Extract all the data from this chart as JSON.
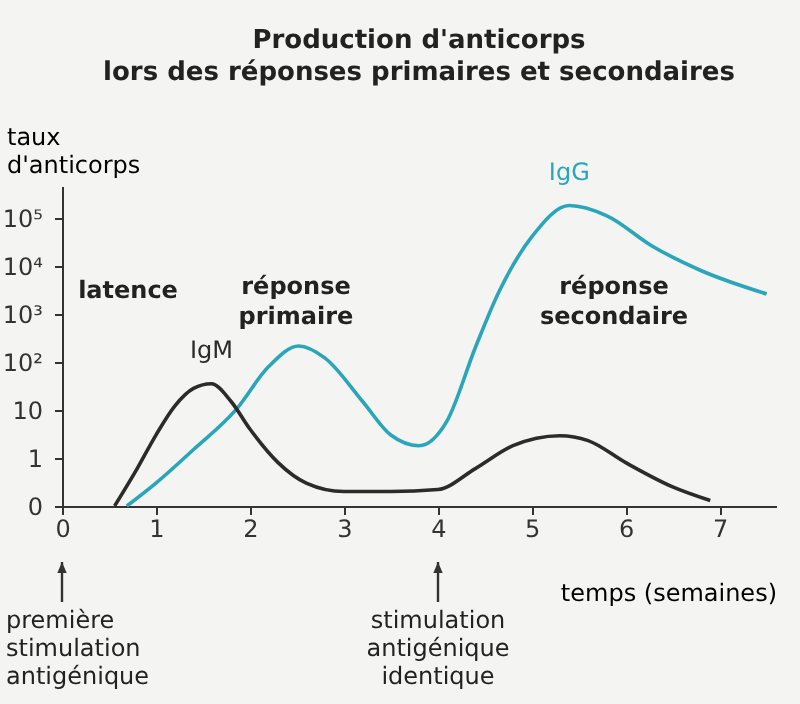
{
  "chart_data": {
    "type": "line",
    "title": "Production d'anticorps\nlors des réponses primaires et secondaires",
    "xlabel": "temps (semaines)",
    "ylabel": "taux\nd'anticorps",
    "log": "y",
    "xlim": [
      0,
      7.6
    ],
    "xticks": [
      0,
      1,
      2,
      3,
      4,
      5,
      6,
      7
    ],
    "ylim": [
      0.1,
      460000
    ],
    "yticks": [
      {
        "value": 0.1,
        "label": "0"
      },
      1,
      10,
      {
        "value": 100,
        "label": "10²"
      },
      {
        "value": 1000,
        "label": "10³"
      },
      {
        "value": 10000,
        "label": "10⁴"
      },
      {
        "value": 100000,
        "label": "10⁵"
      }
    ],
    "grid": false,
    "legend": false,
    "marker": "none",
    "line_style": "solid",
    "series": [
      {
        "name": "IgG",
        "color": "#2aa5b9",
        "x": [
          0.69,
          1.0,
          1.4,
          1.85,
          2.2,
          2.52,
          2.8,
          3.2,
          3.5,
          3.8,
          4.1,
          4.4,
          4.64,
          5.0,
          5.4,
          5.8,
          6.28,
          6.8,
          7.5
        ],
        "values": [
          0.1,
          0.3,
          1.5,
          10,
          80,
          215,
          120,
          15,
          3,
          1.8,
          6,
          200,
          2600,
          40000,
          180000,
          110000,
          26000,
          8000,
          2600
        ]
      },
      {
        "name": "IgM",
        "color": "#2b2b2b",
        "x": [
          0.56,
          0.8,
          1.0,
          1.2,
          1.4,
          1.59,
          1.8,
          2.0,
          2.3,
          2.6,
          3.0,
          3.5,
          4.0,
          4.4,
          4.8,
          5.3,
          5.6,
          6.0,
          6.5,
          6.9
        ],
        "values": [
          0.1,
          0.6,
          3,
          12,
          28,
          35,
          15,
          4,
          0.8,
          0.3,
          0.2,
          0.2,
          0.22,
          0.6,
          1.8,
          2.9,
          2.3,
          0.8,
          0.25,
          0.13
        ]
      }
    ],
    "annotations": [
      "latence",
      "réponse primaire",
      "réponse secondaire",
      "première stimulation antigénique",
      "stimulation antigénique identique"
    ]
  }
}
